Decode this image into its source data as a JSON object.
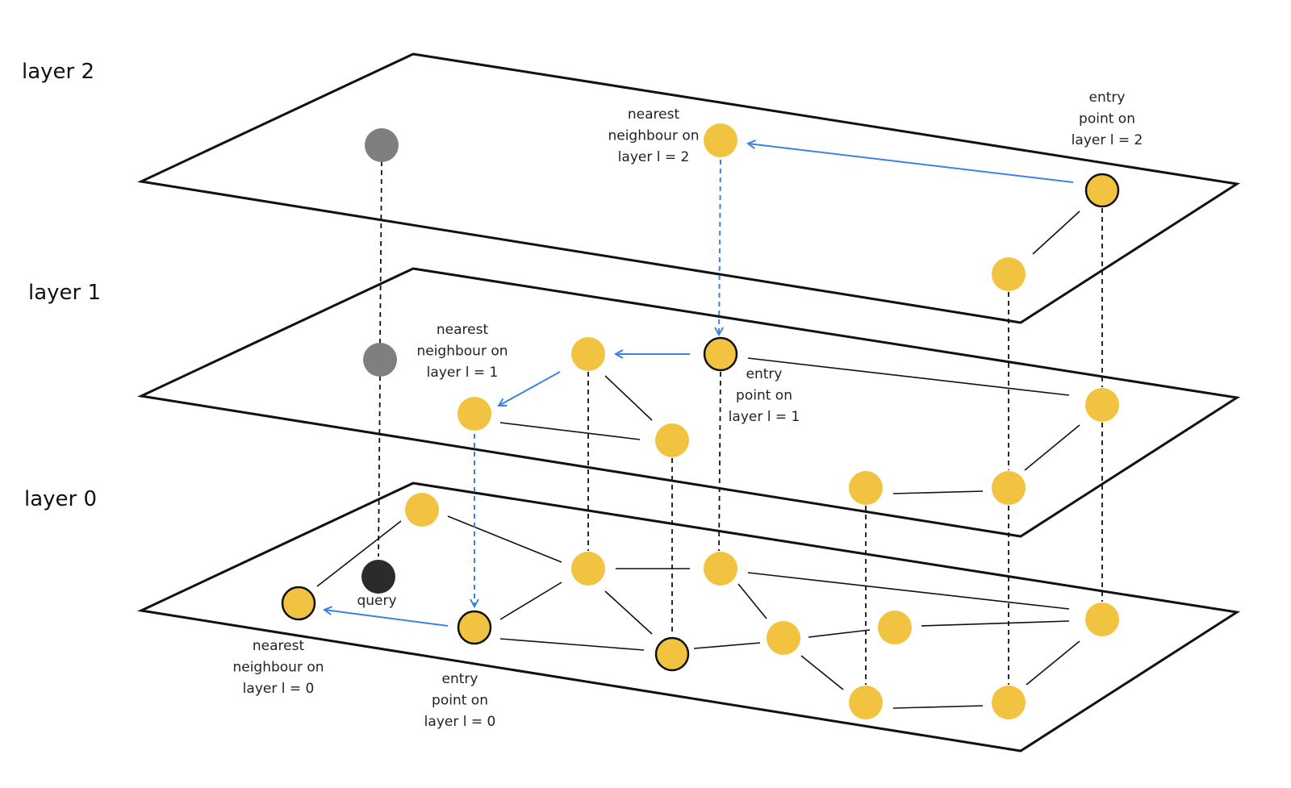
{
  "layers": [
    {
      "label": "layer 2"
    },
    {
      "label": "layer 1"
    },
    {
      "label": "layer 0"
    }
  ],
  "annotations": [
    {
      "lines": [
        "nearest",
        "neighbour on",
        "layer l = 2"
      ]
    },
    {
      "lines": [
        "entry",
        "point on",
        "layer l = 2"
      ]
    },
    {
      "lines": [
        "nearest",
        "neighbour on",
        "layer l = 1"
      ]
    },
    {
      "lines": [
        "entry",
        "point on",
        "layer l = 1"
      ]
    },
    {
      "lines": [
        "nearest",
        "neighbour on",
        "layer l = 0"
      ]
    },
    {
      "lines": [
        "entry",
        "point on",
        "layer l = 0"
      ]
    }
  ],
  "query_label": "query"
}
